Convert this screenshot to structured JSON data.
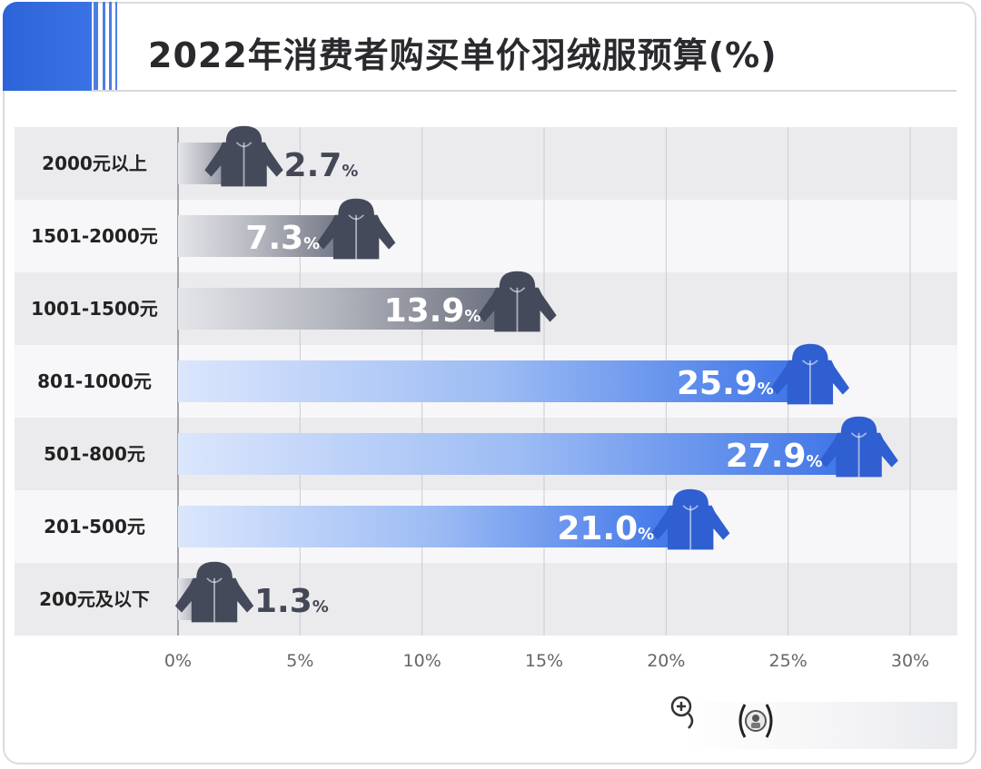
{
  "title": "2022年消费者购买单价羽绒服预算(%)",
  "chart_data": {
    "type": "bar",
    "orientation": "horizontal",
    "title": "2022年消费者购买单价羽绒服预算(%)",
    "xlabel": "",
    "ylabel": "",
    "categories": [
      "2000元以上",
      "1501-2000元",
      "1001-1500元",
      "801-1000元",
      "501-800元",
      "201-500元",
      "200元及以下"
    ],
    "values": [
      2.7,
      7.3,
      13.9,
      25.9,
      27.9,
      21.0,
      1.3
    ],
    "value_labels": [
      "2.7",
      "7.3",
      "13.9",
      "25.9",
      "27.9",
      "21.0",
      "1.3"
    ],
    "value_suffix": "%",
    "bar_styles": [
      "gray",
      "gray",
      "gray",
      "blue",
      "blue",
      "blue",
      "gray"
    ],
    "xlim": [
      0,
      30
    ],
    "xticks": [
      0,
      5,
      10,
      15,
      20,
      25,
      30
    ],
    "xtick_labels": [
      "0%",
      "5%",
      "10%",
      "15%",
      "20%",
      "25%",
      "30%"
    ],
    "grid": "vertical",
    "legend": "none"
  },
  "colors": {
    "accent_blue": "#2f67dc",
    "bar_gray_dark": "#6f7280",
    "bar_gray_light": "#e2e3e7",
    "bar_blue_dark": "#3d74e8",
    "bar_blue_light": "#d6e3fb",
    "jacket_gray": "#454a5b",
    "jacket_blue": "#2f5fd0",
    "row_band": "#ebebee"
  },
  "icons": {
    "marker": "down-jacket-icon",
    "toolbar_zoom": "zoom-in-icon",
    "toolbar_avatar": "avatar-icon"
  }
}
